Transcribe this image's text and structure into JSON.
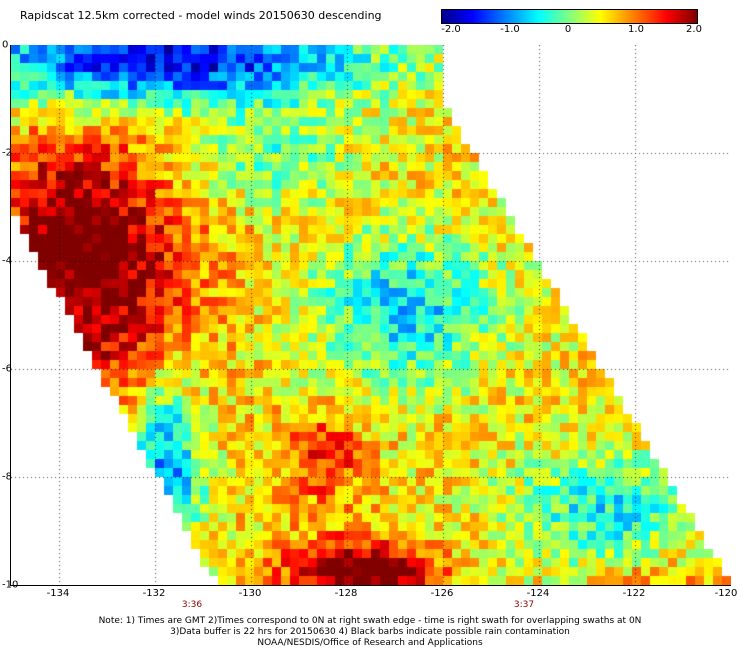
{
  "title": "Rapidscat 12.5km corrected - model winds 20150630 descending",
  "colorbar": {
    "labels": [
      "-2.0",
      "-1.0",
      "0",
      "1.0",
      "2.0"
    ],
    "min": -2.0,
    "max": 2.0,
    "colors": [
      "#00008c",
      "#0000ff",
      "#0080ff",
      "#00ffff",
      "#80ff80",
      "#ffff00",
      "#ff8000",
      "#ff0000",
      "#800000"
    ]
  },
  "axes": {
    "lon_labels": [
      "-134",
      "-132",
      "-130",
      "-128",
      "-126",
      "-124",
      "-122",
      "-120"
    ],
    "lon_range": [
      -135,
      -120
    ],
    "lat_labels": [
      "0",
      "-2",
      "-4",
      "-6",
      "-8",
      "-10"
    ],
    "lat_range": [
      -10,
      0
    ],
    "time_labels": [
      "3:36",
      "3:37"
    ],
    "grid": "dotted"
  },
  "notes": {
    "line1": "Note: 1) Times are GMT 2)Times correspond to 0N at right swath edge - time is right swath for overlapping swaths at 0N",
    "line2": "3)Data buffer is 22 hrs for 20150630 4) Black barbs indicate possible rain contamination",
    "line3": "NOAA/NESDIS/Office of Research and Applications"
  }
}
